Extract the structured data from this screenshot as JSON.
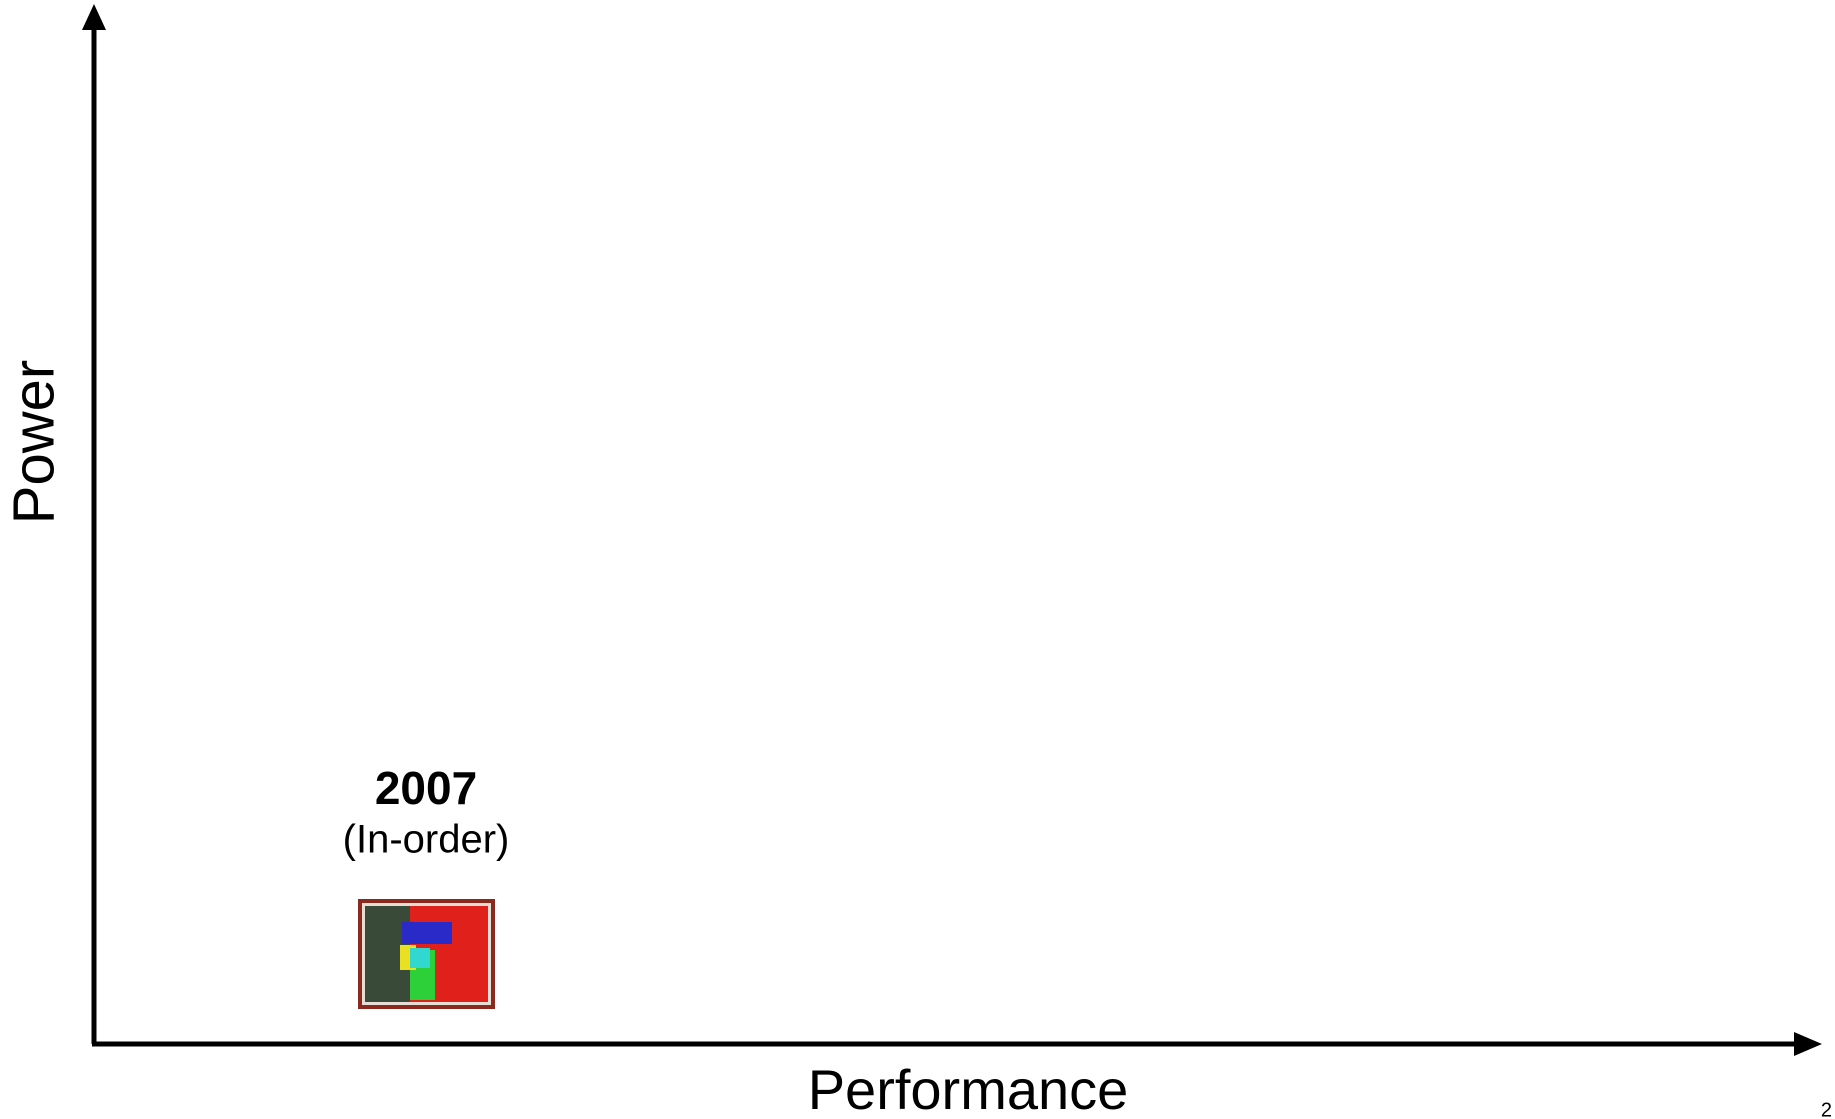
{
  "y_axis": {
    "label": "Power"
  },
  "x_axis": {
    "label": "Performance"
  },
  "annotation": {
    "year": "2007",
    "description": "(In-order)"
  },
  "page_number": "2"
}
